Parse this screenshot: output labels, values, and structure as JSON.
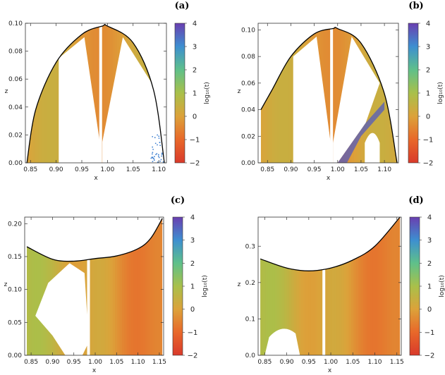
{
  "figure": {
    "colorbar": {
      "label": "log₁₀(t)",
      "ticks": [
        "4",
        "3",
        "2",
        "1",
        "0",
        "−1",
        "−2"
      ],
      "range": [
        -2,
        4
      ],
      "colors": [
        "#d93a2b",
        "#e8682a",
        "#dca23a",
        "#a9c04a",
        "#5fc08a",
        "#3d8fd0",
        "#6a3fb0"
      ]
    }
  },
  "chart_data": [
    {
      "type": "heatmap",
      "panel_label": "(a)",
      "xlabel": "x",
      "ylabel": "z",
      "xlim": [
        0.84,
        1.115
      ],
      "ylim": [
        0.0,
        0.1
      ],
      "xticks": [
        "0.85",
        "0.90",
        "0.95",
        "1.00",
        "1.05",
        "1.10"
      ],
      "xtick_values": [
        0.85,
        0.9,
        0.95,
        1.0,
        1.05,
        1.1
      ],
      "yticks": [
        "0.00",
        "0.02",
        "0.04",
        "0.06",
        "0.08",
        "0.10"
      ],
      "ytick_values": [
        0.0,
        0.02,
        0.04,
        0.06,
        0.08,
        0.1
      ],
      "boundary": [
        [
          0.843,
          0.0
        ],
        [
          0.86,
          0.038
        ],
        [
          0.9,
          0.072
        ],
        [
          0.95,
          0.092
        ],
        [
          0.99,
          0.098
        ],
        [
          1.0,
          0.098
        ],
        [
          1.05,
          0.086
        ],
        [
          1.09,
          0.052
        ],
        [
          1.111,
          0.0
        ]
      ],
      "colorbar_label": "log₁₀(t)"
    },
    {
      "type": "heatmap",
      "panel_label": "(b)",
      "xlabel": "x",
      "ylabel": "z",
      "xlim": [
        0.83,
        1.13
      ],
      "ylim": [
        0.0,
        0.105
      ],
      "xticks": [
        "0.85",
        "0.90",
        "0.95",
        "1.00",
        "1.05",
        "1.10"
      ],
      "xtick_values": [
        0.85,
        0.9,
        0.95,
        1.0,
        1.05,
        1.1
      ],
      "yticks": [
        "0.00",
        "0.02",
        "0.04",
        "0.06",
        "0.08",
        "0.10"
      ],
      "ytick_values": [
        0.0,
        0.02,
        0.04,
        0.06,
        0.08,
        0.1
      ],
      "boundary": [
        [
          0.836,
          0.04
        ],
        [
          0.86,
          0.055
        ],
        [
          0.9,
          0.08
        ],
        [
          0.95,
          0.097
        ],
        [
          0.99,
          0.101
        ],
        [
          1.0,
          0.101
        ],
        [
          1.05,
          0.09
        ],
        [
          1.1,
          0.052
        ],
        [
          1.127,
          0.0
        ]
      ],
      "colorbar_label": "log₁₀(t)"
    },
    {
      "type": "heatmap",
      "panel_label": "(c)",
      "xlabel": "x",
      "ylabel": "z",
      "xlim": [
        0.835,
        1.16
      ],
      "ylim": [
        0.0,
        0.21
      ],
      "xticks": [
        "0.85",
        "0.90",
        "0.95",
        "1.00",
        "1.05",
        "1.10",
        "1.15"
      ],
      "xtick_values": [
        0.85,
        0.9,
        0.95,
        1.0,
        1.05,
        1.1,
        1.15
      ],
      "yticks": [
        "0.00",
        "0.05",
        "0.10",
        "0.15",
        "0.20"
      ],
      "ytick_values": [
        0.0,
        0.05,
        0.1,
        0.15,
        0.2
      ],
      "boundary": [
        [
          0.84,
          0.165
        ],
        [
          0.9,
          0.146
        ],
        [
          0.95,
          0.143
        ],
        [
          1.0,
          0.147
        ],
        [
          1.05,
          0.151
        ],
        [
          1.1,
          0.162
        ],
        [
          1.13,
          0.178
        ],
        [
          1.157,
          0.208
        ]
      ],
      "colorbar_label": "log₁₀(t)"
    },
    {
      "type": "heatmap",
      "panel_label": "(d)",
      "xlabel": "x",
      "ylabel": "z",
      "xlim": [
        0.835,
        1.16
      ],
      "ylim": [
        0.0,
        0.38
      ],
      "xticks": [
        "0.85",
        "0.90",
        "0.95",
        "1.00",
        "1.05",
        "1.10",
        "1.15"
      ],
      "xtick_values": [
        0.85,
        0.9,
        0.95,
        1.0,
        1.05,
        1.1,
        1.15
      ],
      "yticks": [
        "0.0",
        "0.1",
        "0.2",
        "0.3"
      ],
      "ytick_values": [
        0.0,
        0.1,
        0.2,
        0.3
      ],
      "boundary": [
        [
          0.84,
          0.265
        ],
        [
          0.9,
          0.24
        ],
        [
          0.95,
          0.232
        ],
        [
          1.0,
          0.24
        ],
        [
          1.05,
          0.262
        ],
        [
          1.1,
          0.3
        ],
        [
          1.157,
          0.38
        ]
      ],
      "colorbar_label": "log₁₀(t)"
    }
  ]
}
